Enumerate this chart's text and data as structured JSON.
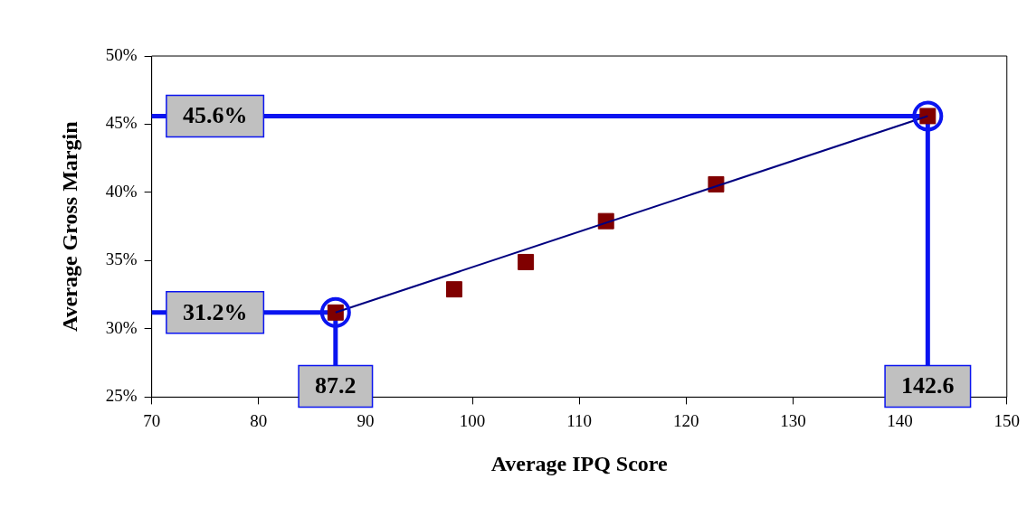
{
  "chart_data": {
    "type": "scatter",
    "xlabel": "Average IPQ Score",
    "ylabel": "Average Gross Margin",
    "series": [
      {
        "type": "scatter",
        "marker": "square",
        "color": "#800000",
        "x": [
          87.2,
          98.3,
          105.0,
          112.5,
          122.8,
          142.6
        ],
        "values": [
          31.2,
          32.9,
          34.9,
          37.9,
          40.6,
          45.6
        ]
      },
      {
        "type": "line",
        "marker": "circle",
        "color": "#000080",
        "x": [
          87.2,
          142.6
        ],
        "values": [
          31.2,
          45.6
        ]
      }
    ],
    "grid": false,
    "legend": false,
    "xlim": [
      70,
      150
    ],
    "xticks": [
      70,
      80,
      90,
      100,
      110,
      120,
      130,
      140,
      150
    ],
    "ylim": [
      25,
      50
    ],
    "yticks": [
      {
        "value": 25,
        "label": "25%"
      },
      {
        "value": 30,
        "label": "30%"
      },
      {
        "value": 35,
        "label": "35%"
      },
      {
        "value": 40,
        "label": "40%"
      },
      {
        "value": 45,
        "label": "45%"
      },
      {
        "value": 50,
        "label": "50%"
      }
    ],
    "ref_lines": [
      {
        "axis": "y",
        "value": 45.6,
        "label": "45.6%",
        "color": "#0a14f0"
      },
      {
        "axis": "x",
        "value": 142.6,
        "label": "142.6",
        "color": "#0a14f0"
      },
      {
        "axis": "y",
        "value": 31.2,
        "label": "31.2%",
        "color": "#0a14f0"
      },
      {
        "axis": "x",
        "value": 87.2,
        "label": "87.2",
        "color": "#0a14f0"
      }
    ]
  }
}
